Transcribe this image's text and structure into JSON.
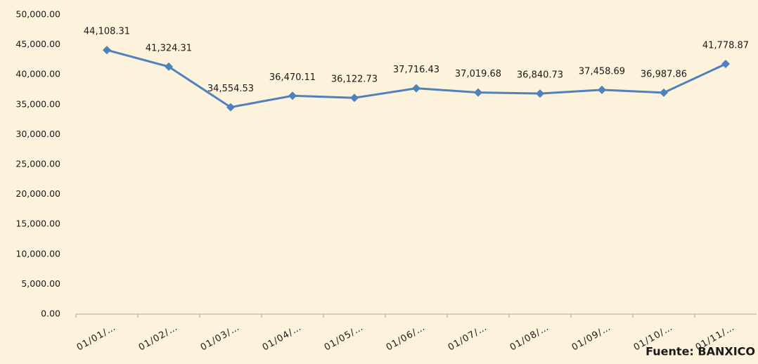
{
  "chart_data": {
    "type": "line",
    "categories": [
      "01/01/…",
      "01/02/…",
      "01/03/…",
      "01/04/…",
      "01/05/…",
      "01/06/…",
      "01/07/…",
      "01/08/…",
      "01/09/…",
      "01/10/…",
      "01/11/…"
    ],
    "series": [
      {
        "color": "#4f81bd",
        "values": [
          44108.31,
          41324.31,
          34554.53,
          36470.11,
          36122.73,
          37716.43,
          37019.68,
          36840.73,
          37458.69,
          36987.86,
          41778.87
        ],
        "value_labels": [
          "44,108.31",
          "41,324.31",
          "34,554.53",
          "36,470.11",
          "36,122.73",
          "37,716.43",
          "37,019.68",
          "36,840.73",
          "37,458.69",
          "36,987.86",
          "41,778.87"
        ]
      }
    ],
    "ylim": [
      0,
      50000
    ],
    "yticks": [
      {
        "value": 0,
        "label": "0.00"
      },
      {
        "value": 5000,
        "label": "5,000.00"
      },
      {
        "value": 10000,
        "label": "10,000.00"
      },
      {
        "value": 15000,
        "label": "15,000.00"
      },
      {
        "value": 20000,
        "label": "20,000.00"
      },
      {
        "value": 25000,
        "label": "25,000.00"
      },
      {
        "value": 30000,
        "label": "30,000.00"
      },
      {
        "value": 35000,
        "label": "35,000.00"
      },
      {
        "value": 40000,
        "label": "40,000.00"
      },
      {
        "value": 45000,
        "label": "45,000.00"
      },
      {
        "value": 50000,
        "label": "50,000.00"
      }
    ],
    "grid": false,
    "annotation": "Fuente: BANXICO"
  }
}
